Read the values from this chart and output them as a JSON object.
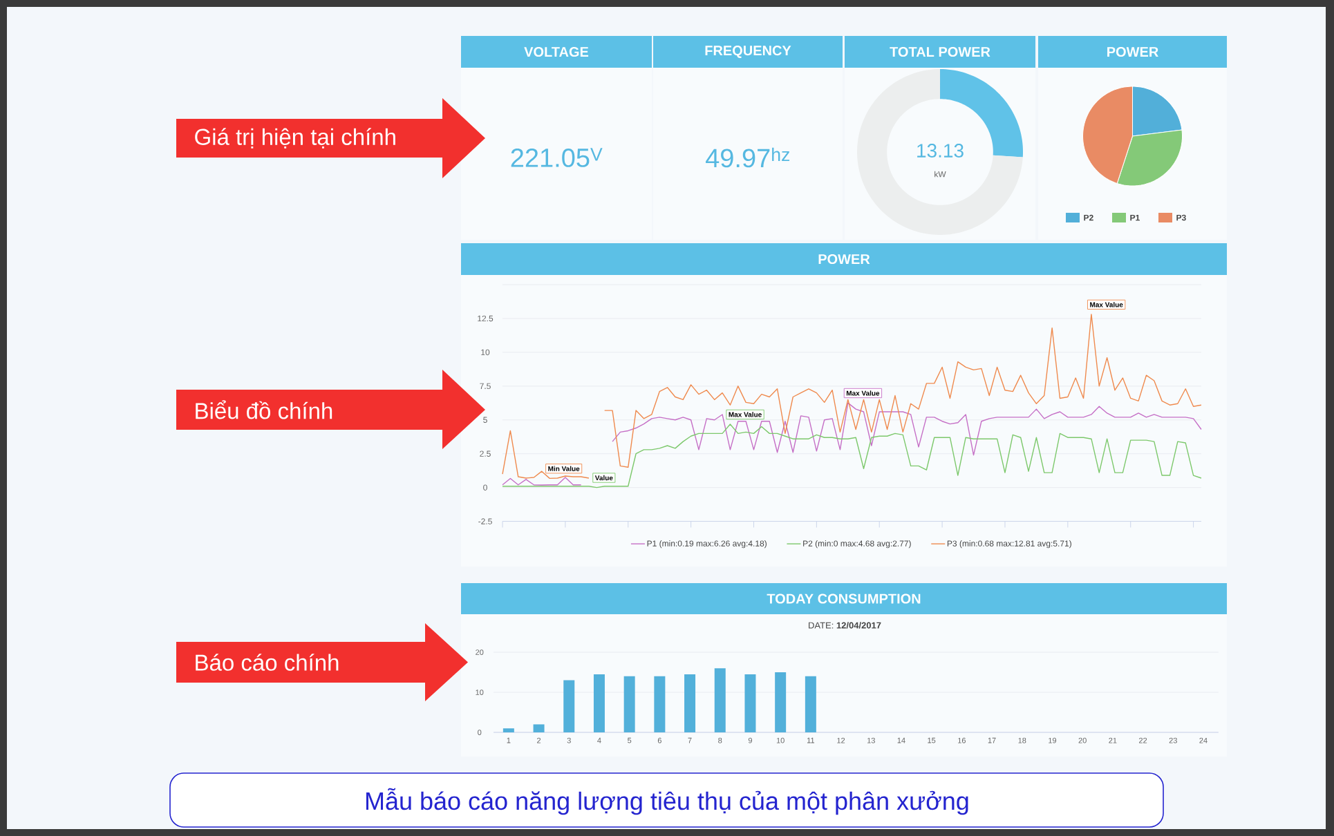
{
  "chart_data": [
    {
      "type": "other",
      "title": "VOLTAGE",
      "annotations": [
        "221.05$^{V}$"
      ]
    },
    {
      "type": "other",
      "title": "FREQUENCY",
      "annotations": [
        "49.97$^{hz}$"
      ]
    },
    {
      "type": "donut",
      "title": "TOTAL POWER",
      "categories": [
        null,
        null
      ],
      "values": [
        26,
        74
      ],
      "colors": [
        "#60c2e8",
        "#eceeee"
      ],
      "annotations": [
        "13.13",
        "kW"
      ]
    },
    {
      "type": "pie",
      "title": "POWER",
      "categories": [
        "P2",
        "P1",
        "P3"
      ],
      "values": [
        23,
        32,
        45
      ],
      "colors": [
        "#52afd9",
        "#84c978",
        "#e98b64"
      ],
      "legend": "bottom"
    },
    {
      "type": "line",
      "title": "POWER",
      "categories": [
        null,
        null,
        null,
        null,
        null,
        null,
        null,
        null,
        null,
        null,
        null,
        null,
        null,
        null,
        null,
        null,
        null,
        null,
        null,
        null,
        null,
        null,
        null,
        null,
        null,
        null,
        null,
        null,
        null,
        null,
        null,
        null,
        null,
        null,
        null,
        null,
        null,
        null,
        null,
        null,
        null,
        null,
        null,
        null,
        null,
        null,
        null,
        null,
        null,
        null,
        null,
        null,
        null,
        null,
        null,
        null,
        null,
        null,
        null,
        null,
        null,
        null,
        null,
        null,
        null,
        null,
        null,
        null,
        null,
        null,
        null,
        null,
        null,
        null,
        null,
        null,
        null,
        null,
        null,
        null,
        null,
        null,
        null,
        null,
        null,
        null,
        null,
        null,
        null,
        null
      ],
      "series": [
        {
          "name": "P1 (min:0.19 max:6.26 avg:4.18)",
          "color": "#c56fc6",
          "values": [
            0.2,
            0.67,
            0.2,
            0.6,
            0.2,
            0.19,
            0.2,
            0.2,
            0.75,
            0.2,
            0.2,
            null,
            null,
            null,
            3.4,
            4.1,
            4.2,
            4.4,
            4.7,
            5.1,
            5.2,
            5.1,
            5.0,
            5.2,
            5.0,
            2.8,
            5.1,
            5.0,
            5.4,
            2.8,
            4.9,
            4.9,
            2.8,
            4.9,
            4.9,
            2.6,
            4.9,
            2.6,
            5.3,
            5.2,
            2.7,
            5.0,
            5.1,
            2.8,
            6.26,
            5.8,
            5.6,
            3.1,
            5.6,
            5.6,
            5.6,
            5.6,
            5.4,
            3.0,
            5.2,
            5.2,
            4.9,
            4.7,
            4.8,
            5.4,
            2.4,
            4.9,
            5.1,
            5.2,
            5.2,
            5.2,
            5.2,
            5.2,
            5.8,
            5.1,
            5.4,
            5.6,
            5.2,
            5.2,
            5.2,
            5.4,
            6.0,
            5.5,
            5.2,
            5.2,
            5.2,
            5.5,
            5.2,
            5.4,
            5.2,
            5.2,
            5.2,
            5.2,
            5.1,
            4.3
          ]
        },
        {
          "name": "P2 (min:0 max:4.68 avg:2.77)",
          "color": "#7cc86b",
          "values": [
            0.1,
            0.1,
            0.1,
            0.1,
            0.1,
            0.1,
            0.1,
            0.1,
            0.1,
            0.1,
            0.1,
            0.1,
            0,
            0.1,
            0.1,
            0.1,
            0.1,
            2.5,
            2.8,
            2.8,
            2.9,
            3.1,
            2.9,
            3.4,
            3.8,
            4.0,
            4.0,
            4.0,
            4.0,
            4.68,
            4.0,
            4.1,
            4.0,
            4.5,
            4.0,
            4.0,
            3.8,
            3.6,
            3.6,
            3.6,
            3.9,
            3.7,
            3.7,
            3.6,
            3.6,
            3.7,
            1.4,
            3.7,
            3.8,
            3.8,
            4.0,
            3.9,
            1.6,
            1.6,
            1.3,
            3.7,
            3.7,
            3.7,
            0.9,
            3.7,
            3.6,
            3.6,
            3.6,
            3.6,
            1.1,
            3.9,
            3.7,
            1.2,
            3.7,
            1.1,
            1.1,
            4.0,
            3.7,
            3.7,
            3.7,
            3.6,
            1.1,
            3.6,
            1.1,
            1.1,
            3.5,
            3.5,
            3.5,
            3.4,
            0.9,
            0.9,
            3.4,
            3.3,
            0.9,
            0.7
          ]
        },
        {
          "name": "P3 (min:0.68 max:12.81 avg:5.71)",
          "color": "#ef8a4e",
          "values": [
            1.0,
            4.2,
            0.8,
            0.7,
            0.75,
            1.2,
            0.68,
            0.7,
            0.85,
            0.8,
            0.8,
            0.7,
            null,
            5.7,
            5.7,
            1.6,
            1.5,
            5.7,
            5.1,
            5.4,
            7.1,
            7.4,
            6.7,
            6.5,
            7.6,
            6.9,
            7.2,
            6.5,
            7.0,
            6.1,
            7.5,
            6.3,
            6.2,
            6.9,
            6.7,
            7.3,
            4.0,
            6.7,
            7.0,
            7.3,
            7.0,
            6.3,
            7.2,
            4.1,
            6.5,
            4.3,
            6.5,
            4.1,
            6.5,
            4.3,
            6.8,
            4.1,
            6.2,
            5.8,
            7.7,
            7.7,
            8.9,
            6.6,
            9.3,
            8.9,
            8.7,
            8.8,
            6.8,
            8.9,
            7.2,
            7.1,
            8.3,
            7.0,
            6.2,
            6.8,
            11.8,
            6.6,
            6.7,
            8.1,
            6.6,
            12.81,
            7.5,
            9.6,
            7.2,
            8.1,
            6.6,
            6.4,
            8.3,
            7.9,
            6.4,
            6.1,
            6.2,
            7.3,
            6.0,
            6.1
          ]
        }
      ],
      "ylim": [
        -2.5,
        15
      ],
      "yticks": [
        -2.5,
        0,
        2.5,
        5,
        7.5,
        10,
        12.5,
        {
          "value": 15,
          "label": null
        }
      ],
      "grid": "y",
      "legend": "bottom",
      "marker": "none",
      "line_style": "solid",
      "annotations": [
        {
          "text": "Min Value",
          "y": 0.68
        },
        {
          "text": "Value",
          "y": 0
        },
        {
          "text": "Max Value",
          "y": 4.68
        },
        {
          "text": "Max Value",
          "y": 6.26
        },
        "Max Value"
      ]
    },
    {
      "type": "bar",
      "title": "TODAY CONSUMPTION",
      "subtitle": "DATE: **12/04/2017**",
      "categories": [
        "1",
        "2",
        "3",
        "4",
        "5",
        "6",
        "7",
        "8",
        "9",
        "10",
        "11",
        "12",
        "13",
        "14",
        "15",
        "16",
        "17",
        "18",
        "19",
        "20",
        "21",
        "22",
        "23",
        "24"
      ],
      "values": [
        1,
        2,
        13,
        14.5,
        14,
        14,
        14.5,
        16,
        14.5,
        15,
        14,
        null,
        null,
        null,
        null,
        null,
        null,
        null,
        null,
        null,
        null,
        null,
        null,
        null
      ],
      "color": "#52b0da",
      "ylim": [
        0,
        20
      ],
      "yticks": [
        0,
        10,
        20
      ],
      "grid": "y"
    },
    {
      "type": "other",
      "title": "Mẫu báo cáo năng lượng tiêu thụ của một phân xưởng",
      "annotations": [
        "Giá trị hiện tại chính",
        "Biểu đồ chính",
        "Báo cáo chính"
      ]
    }
  ]
}
